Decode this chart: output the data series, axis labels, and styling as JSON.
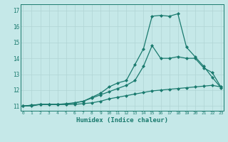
{
  "title": "",
  "xlabel": "Humidex (Indice chaleur)",
  "ylabel": "",
  "background_color": "#c5e8e8",
  "line_color": "#1a7a6e",
  "grid_color": "#b0d4d4",
  "x_ticks": [
    0,
    1,
    2,
    3,
    4,
    5,
    6,
    7,
    8,
    9,
    10,
    11,
    12,
    13,
    14,
    15,
    16,
    17,
    18,
    19,
    20,
    21,
    22,
    23
  ],
  "y_ticks": [
    11,
    12,
    13,
    14,
    15,
    16,
    17
  ],
  "xlim": [
    -0.3,
    23.3
  ],
  "ylim": [
    10.7,
    17.4
  ],
  "line1_x": [
    0,
    1,
    2,
    3,
    4,
    5,
    6,
    7,
    8,
    9,
    10,
    11,
    12,
    13,
    14,
    15,
    16,
    17,
    18,
    19,
    20,
    21,
    22,
    23
  ],
  "line1_y": [
    11.0,
    11.0,
    11.1,
    11.1,
    11.1,
    11.1,
    11.1,
    11.15,
    11.2,
    11.3,
    11.45,
    11.55,
    11.65,
    11.75,
    11.85,
    11.95,
    12.0,
    12.05,
    12.1,
    12.15,
    12.2,
    12.25,
    12.3,
    12.2
  ],
  "line2_x": [
    0,
    1,
    2,
    3,
    4,
    5,
    6,
    7,
    8,
    9,
    10,
    11,
    12,
    13,
    14,
    15,
    16,
    17,
    18,
    19,
    20,
    21,
    22,
    23
  ],
  "line2_y": [
    11.0,
    11.05,
    11.1,
    11.1,
    11.1,
    11.1,
    11.2,
    11.3,
    11.5,
    11.7,
    11.9,
    12.1,
    12.3,
    12.6,
    13.5,
    14.8,
    14.0,
    14.0,
    14.1,
    14.0,
    14.0,
    13.4,
    13.1,
    12.2
  ],
  "line3_x": [
    0,
    1,
    2,
    3,
    4,
    5,
    6,
    7,
    8,
    9,
    10,
    11,
    12,
    13,
    14,
    15,
    16,
    17,
    18,
    19,
    20,
    21,
    22,
    23
  ],
  "line3_y": [
    11.0,
    11.05,
    11.1,
    11.1,
    11.1,
    11.15,
    11.2,
    11.3,
    11.55,
    11.8,
    12.2,
    12.45,
    12.6,
    13.6,
    14.6,
    16.65,
    16.7,
    16.65,
    16.8,
    14.7,
    14.1,
    13.5,
    12.8,
    12.15
  ],
  "marker": "D",
  "markersize": 2.0,
  "linewidth": 0.9
}
